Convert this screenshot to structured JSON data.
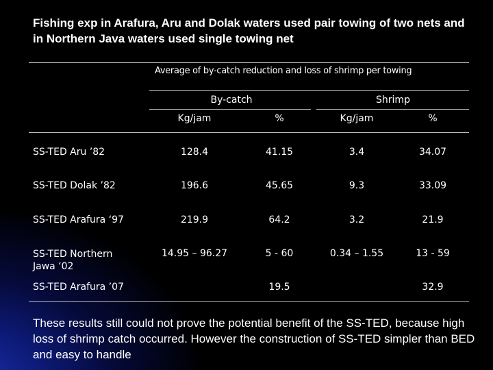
{
  "title": "Fishing exp in Arafura, Aru and Dolak waters used pair towing of two nets and in Northern Java waters used single towing net",
  "table": {
    "caption": "Average of by-catch reduction and loss of shrimp per towing",
    "groups": [
      "By-catch",
      "Shrimp"
    ],
    "columns": [
      "Kg/jam",
      "%",
      "Kg/jam",
      "%"
    ],
    "rows": [
      {
        "label": "SS-TED Aru ’82",
        "values": [
          "128.4",
          "41.15",
          "3.4",
          "34.07"
        ]
      },
      {
        "label": "SS-TED Dolak ’82",
        "values": [
          "196.6",
          "45.65",
          "9.3",
          "33.09"
        ]
      },
      {
        "label": "SS-TED Arafura ‘97",
        "values": [
          "219.9",
          "64.2",
          "3.2",
          "21.9"
        ]
      },
      {
        "label": "SS-TED Northern Jawa ‘02",
        "values": [
          "14.95 – 96.27",
          "5 - 60",
          "0.34 – 1.55",
          "13 - 59"
        ]
      },
      {
        "label": "SS-TED Arafura ’07",
        "values": [
          "",
          "19.5",
          "",
          "32.9"
        ]
      }
    ]
  },
  "footer": "These results still could not prove the potential benefit of the SS-TED, because high loss of shrimp catch occurred. However the construction of SS-TED simpler  than BED and easy to handle"
}
